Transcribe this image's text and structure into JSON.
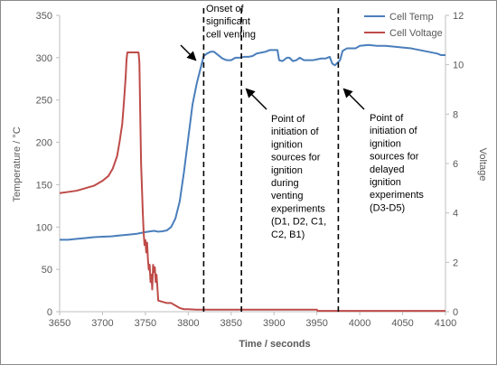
{
  "chart_data": {
    "type": "line",
    "xlabel": "Time / seconds",
    "ylabel": "Temperature / °C",
    "y2label": "Voltage",
    "xlim": [
      3650,
      4100
    ],
    "xticks": [
      3650,
      3700,
      3750,
      3800,
      3850,
      3900,
      3950,
      4000,
      4050,
      4100
    ],
    "ylim": [
      0,
      350
    ],
    "yticks": [
      0,
      50,
      100,
      150,
      200,
      250,
      300,
      350
    ],
    "y2lim": [
      0,
      12
    ],
    "y2ticks": [
      0,
      2,
      4,
      6,
      8,
      10,
      12
    ],
    "grid": false,
    "legend_position": "top-right",
    "series": [
      {
        "name": "Cell Temp",
        "axis": "left",
        "color": "#4a7ebb",
        "points": [
          [
            3650,
            85
          ],
          [
            3660,
            85
          ],
          [
            3670,
            86
          ],
          [
            3680,
            87
          ],
          [
            3690,
            88
          ],
          [
            3700,
            88.5
          ],
          [
            3710,
            89
          ],
          [
            3720,
            90
          ],
          [
            3730,
            91
          ],
          [
            3740,
            92
          ],
          [
            3750,
            94
          ],
          [
            3760,
            95.5
          ],
          [
            3765,
            94.5
          ],
          [
            3770,
            95
          ],
          [
            3775,
            96
          ],
          [
            3780,
            100
          ],
          [
            3785,
            110
          ],
          [
            3790,
            130
          ],
          [
            3795,
            165
          ],
          [
            3800,
            205
          ],
          [
            3805,
            245
          ],
          [
            3810,
            270
          ],
          [
            3815,
            290
          ],
          [
            3818,
            302
          ],
          [
            3822,
            305
          ],
          [
            3826,
            307
          ],
          [
            3830,
            307
          ],
          [
            3835,
            303
          ],
          [
            3840,
            299
          ],
          [
            3845,
            297
          ],
          [
            3850,
            297
          ],
          [
            3855,
            300
          ],
          [
            3860,
            300
          ],
          [
            3865,
            301
          ],
          [
            3870,
            301
          ],
          [
            3875,
            302
          ],
          [
            3880,
            305
          ],
          [
            3885,
            306
          ],
          [
            3890,
            307
          ],
          [
            3895,
            309
          ],
          [
            3900,
            309
          ],
          [
            3904,
            309
          ],
          [
            3906,
            297
          ],
          [
            3910,
            296
          ],
          [
            3915,
            300
          ],
          [
            3918,
            300
          ],
          [
            3922,
            296
          ],
          [
            3926,
            297
          ],
          [
            3930,
            300
          ],
          [
            3935,
            297
          ],
          [
            3940,
            297
          ],
          [
            3945,
            297
          ],
          [
            3950,
            298
          ],
          [
            3955,
            299
          ],
          [
            3960,
            299
          ],
          [
            3965,
            301
          ],
          [
            3968,
            293
          ],
          [
            3971,
            291
          ],
          [
            3974,
            294
          ],
          [
            3977,
            297
          ],
          [
            3980,
            308
          ],
          [
            3985,
            311
          ],
          [
            3990,
            311
          ],
          [
            3995,
            311
          ],
          [
            4000,
            314
          ],
          [
            4010,
            315
          ],
          [
            4020,
            314
          ],
          [
            4030,
            314
          ],
          [
            4040,
            313
          ],
          [
            4050,
            312
          ],
          [
            4060,
            311
          ],
          [
            4070,
            309
          ],
          [
            4080,
            307
          ],
          [
            4090,
            305
          ],
          [
            4095,
            303
          ],
          [
            4100,
            303
          ]
        ]
      },
      {
        "name": "Cell Voltage",
        "axis": "right",
        "color": "#be4b48",
        "points": [
          [
            3650,
            4.8
          ],
          [
            3660,
            4.85
          ],
          [
            3670,
            4.9
          ],
          [
            3680,
            5.0
          ],
          [
            3690,
            5.1
          ],
          [
            3700,
            5.3
          ],
          [
            3707,
            5.5
          ],
          [
            3712,
            5.8
          ],
          [
            3717,
            6.3
          ],
          [
            3720,
            6.9
          ],
          [
            3723,
            7.6
          ],
          [
            3725,
            8.5
          ],
          [
            3727,
            9.5
          ],
          [
            3728,
            10.2
          ],
          [
            3729,
            10.5
          ],
          [
            3733,
            10.5
          ],
          [
            3737,
            10.5
          ],
          [
            3741,
            10.5
          ],
          [
            3742,
            10.5
          ],
          [
            3743,
            10.1
          ],
          [
            3744,
            8.0
          ],
          [
            3745,
            6.0
          ],
          [
            3746,
            5.0
          ],
          [
            3747,
            4.0
          ],
          [
            3748,
            3.2
          ],
          [
            3749,
            2.7
          ],
          [
            3750,
            2.9
          ],
          [
            3751,
            2.4
          ],
          [
            3752,
            2.8
          ],
          [
            3753,
            2.1
          ],
          [
            3754,
            1.7
          ],
          [
            3755,
            1.9
          ],
          [
            3756,
            1.2
          ],
          [
            3757,
            1.5
          ],
          [
            3758,
            0.9
          ],
          [
            3759,
            1.9
          ],
          [
            3760,
            1.6
          ],
          [
            3761,
            1.8
          ],
          [
            3762,
            1.2
          ],
          [
            3763,
            1.5
          ],
          [
            3764,
            1.0
          ],
          [
            3765,
            0.45
          ],
          [
            3770,
            0.4
          ],
          [
            3775,
            0.35
          ],
          [
            3780,
            0.35
          ],
          [
            3785,
            0.25
          ],
          [
            3790,
            0.15
          ],
          [
            3795,
            0.1
          ],
          [
            3800,
            0.1
          ],
          [
            3810,
            0.08
          ],
          [
            3830,
            0.08
          ],
          [
            3860,
            0.08
          ],
          [
            3900,
            0.08
          ],
          [
            3950,
            0.08
          ],
          [
            3951,
            0.03
          ],
          [
            4000,
            0.03
          ],
          [
            4050,
            0.03
          ],
          [
            4100,
            0.03
          ]
        ]
      }
    ],
    "vlines": [
      3818,
      3862,
      3975
    ],
    "annotations": [
      {
        "id": "onset",
        "lines": [
          "Onset of",
          "significant",
          "cell venting"
        ]
      },
      {
        "id": "venting",
        "lines": [
          "Point of",
          "initiation of",
          "ignition",
          "sources for",
          "ignition",
          "during",
          "venting",
          "experiments",
          "(D1, D2, C1,",
          "C2, B1)"
        ]
      },
      {
        "id": "delayed",
        "lines": [
          "Point of",
          "initiation of",
          "ignition",
          "sources for",
          "delayed",
          "ignition",
          "experiments",
          "(D3-D5)"
        ]
      }
    ]
  }
}
